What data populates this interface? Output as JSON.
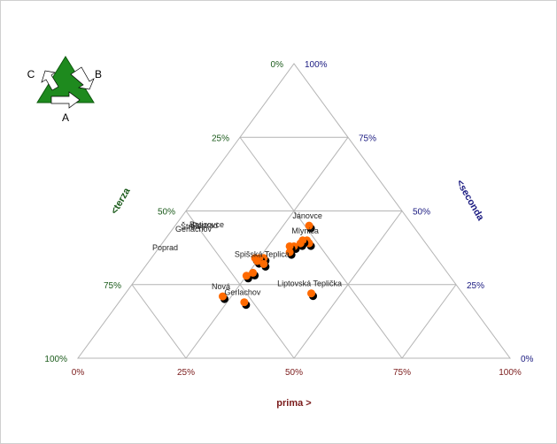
{
  "chart_data": {
    "type": "ternary-scatter",
    "axes": {
      "bottom": {
        "title": "prima >",
        "ticks": [
          "0%",
          "25%",
          "50%",
          "75%",
          "100%"
        ],
        "color": "#7a1a1a"
      },
      "right": {
        "title": "<seconda",
        "ticks": [
          "0%",
          "25%",
          "50%",
          "75%",
          "100%"
        ],
        "color": "#1a1a80"
      },
      "left": {
        "title": "<terza",
        "ticks": [
          "0%",
          "25%",
          "50%",
          "75%",
          "100%"
        ],
        "color": "#1a5a1a"
      }
    },
    "grid": true,
    "marker_color": "#ff6a00",
    "points": [
      {
        "label": "Jánovce",
        "prima": 0.31,
        "seconda": 0.45,
        "terza": 0.24
      },
      {
        "label": "Mlynica",
        "prima": 0.33,
        "seconda": 0.4,
        "terza": 0.27
      },
      {
        "label": "",
        "prima": 0.34,
        "seconda": 0.39,
        "terza": 0.27
      },
      {
        "label": "",
        "prima": 0.32,
        "seconda": 0.4,
        "terza": 0.28
      },
      {
        "label": "",
        "prima": 0.32,
        "seconda": 0.39,
        "terza": 0.29
      },
      {
        "label": "",
        "prima": 0.31,
        "seconda": 0.38,
        "terza": 0.31
      },
      {
        "label": "",
        "prima": 0.3,
        "seconda": 0.38,
        "terza": 0.32
      },
      {
        "label": "",
        "prima": 0.31,
        "seconda": 0.36,
        "terza": 0.33
      },
      {
        "label": "",
        "prima": 0.26,
        "seconda": 0.34,
        "terza": 0.4
      },
      {
        "label": "",
        "prima": 0.25,
        "seconda": 0.34,
        "terza": 0.41
      },
      {
        "label": "",
        "prima": 0.24,
        "seconda": 0.34,
        "terza": 0.42
      },
      {
        "label": "",
        "prima": 0.25,
        "seconda": 0.33,
        "terza": 0.42
      },
      {
        "label": "Spišská Teplica",
        "prima": 0.27,
        "seconda": 0.32,
        "terza": 0.41
      },
      {
        "label": "",
        "prima": 0.25,
        "seconda": 0.28,
        "terza": 0.47
      },
      {
        "label": "",
        "prima": 0.26,
        "seconda": 0.29,
        "terza": 0.45
      },
      {
        "label": "Nová",
        "prima": 0.23,
        "seconda": 0.21,
        "terza": 0.56
      },
      {
        "label": "Gerlachov",
        "prima": 0.29,
        "seconda": 0.19,
        "terza": 0.52
      },
      {
        "label": "Liptovská Teplička",
        "prima": 0.43,
        "seconda": 0.22,
        "terza": 0.35
      }
    ],
    "extra_labels": [
      "Gerlachov",
      "Štrba",
      "Batizovce",
      "Poprad",
      "Poprad"
    ]
  },
  "logo": {
    "label_a": "A",
    "label_b": "B",
    "label_c": "C"
  }
}
